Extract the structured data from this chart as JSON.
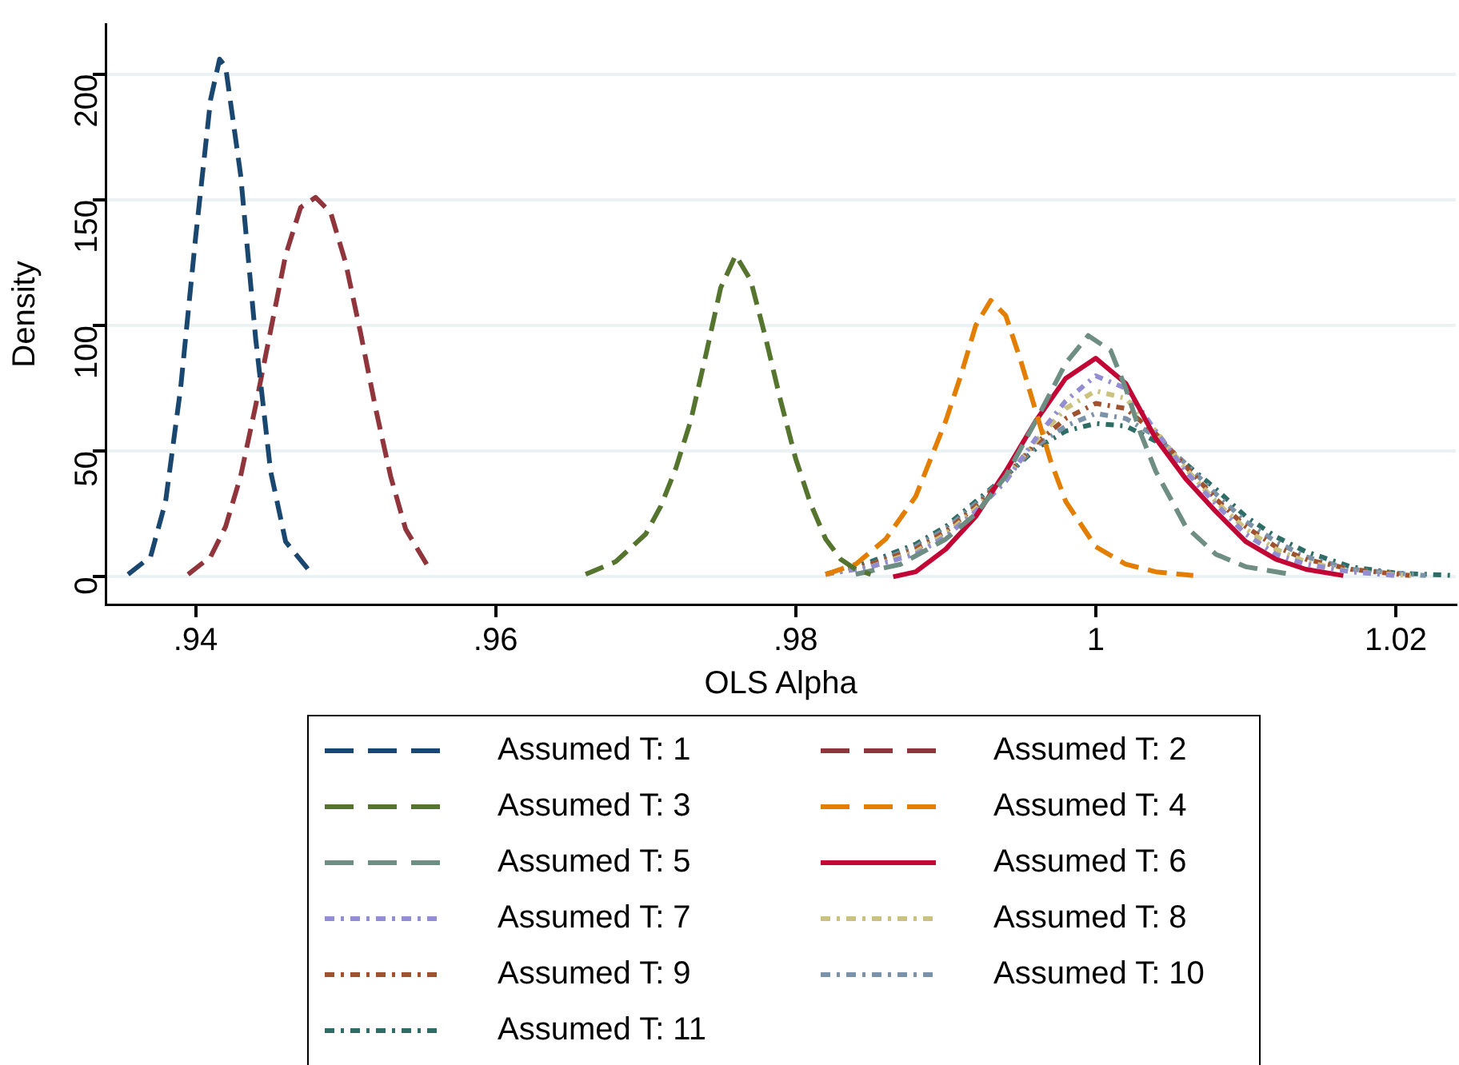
{
  "chart_data": {
    "type": "line",
    "xlabel": "OLS Alpha",
    "ylabel": "Density",
    "xlim": [
      0.934,
      1.024
    ],
    "ylim": [
      -11,
      220
    ],
    "xticks": [
      {
        "value": 0.94,
        "label": ".94"
      },
      {
        "value": 0.96,
        "label": ".96"
      },
      {
        "value": 0.98,
        "label": ".98"
      },
      1,
      1.02
    ],
    "yticks": [
      0,
      50,
      100,
      150,
      200
    ],
    "grid": "y",
    "legend": "bottom",
    "marker": "none",
    "series": [
      {
        "name": "Assumed T: 1",
        "color": "#1a476f",
        "line_style": "dashed",
        "x": [
          0.9355,
          0.937,
          0.938,
          0.939,
          0.94,
          0.941,
          0.9416,
          0.942,
          0.943,
          0.944,
          0.945,
          0.946,
          0.9475
        ],
        "values": [
          1,
          8,
          30,
          75,
          135,
          190,
          206,
          203,
          160,
          95,
          42,
          14,
          3
        ]
      },
      {
        "name": "Assumed T: 2",
        "color": "#90353b",
        "line_style": "dashed",
        "x": [
          0.9395,
          0.941,
          0.942,
          0.943,
          0.944,
          0.945,
          0.946,
          0.947,
          0.948,
          0.949,
          0.95,
          0.951,
          0.952,
          0.953,
          0.954,
          0.9555
        ],
        "values": [
          1,
          8,
          20,
          40,
          68,
          98,
          128,
          147,
          151,
          145,
          125,
          97,
          67,
          40,
          19,
          4
        ]
      },
      {
        "name": "Assumed T: 3",
        "color": "#55752f",
        "line_style": "dashed",
        "x": [
          0.966,
          0.968,
          0.97,
          0.971,
          0.972,
          0.973,
          0.974,
          0.975,
          0.976,
          0.977,
          0.978,
          0.979,
          0.98,
          0.981,
          0.982,
          0.983,
          0.984,
          0.985
        ],
        "values": [
          1,
          6,
          17,
          28,
          43,
          62,
          88,
          115,
          128,
          118,
          95,
          70,
          47,
          29,
          15,
          7,
          3,
          1
        ]
      },
      {
        "name": "Assumed T: 4",
        "color": "#e37e00",
        "line_style": "dashed",
        "x": [
          0.982,
          0.984,
          0.986,
          0.988,
          0.99,
          0.991,
          0.992,
          0.993,
          0.994,
          0.995,
          0.996,
          0.997,
          0.998,
          1.0,
          1.002,
          1.004,
          1.0065
        ],
        "values": [
          1,
          5,
          15,
          32,
          62,
          80,
          100,
          110,
          104,
          86,
          66,
          46,
          30,
          12,
          5,
          2,
          0.5
        ]
      },
      {
        "name": "Assumed T: 5",
        "color": "#6e8e84",
        "line_style": "dashed",
        "x": [
          0.984,
          0.987,
          0.99,
          0.992,
          0.994,
          0.996,
          0.998,
          0.9995,
          1.001,
          1.002,
          1.003,
          1.004,
          1.006,
          1.008,
          1.01,
          1.013
        ],
        "values": [
          1,
          5,
          15,
          25,
          40,
          62,
          85,
          96,
          90,
          75,
          57,
          42,
          20,
          9,
          4,
          1
        ]
      },
      {
        "name": "Assumed T: 6",
        "color": "#c10534",
        "line_style": "solid",
        "x": [
          0.9865,
          0.988,
          0.99,
          0.992,
          0.994,
          0.996,
          0.998,
          1.0,
          1.002,
          1.004,
          1.006,
          1.008,
          1.01,
          1.012,
          1.014,
          1.0165
        ],
        "values": [
          0,
          2,
          11,
          24,
          42,
          62,
          79,
          87,
          77,
          55,
          39,
          26,
          14,
          7,
          3,
          0.5
        ]
      },
      {
        "name": "Assumed T: 7",
        "color": "#938dd2",
        "line_style": "dotted",
        "x": [
          0.982,
          0.985,
          0.988,
          0.99,
          0.992,
          0.994,
          0.996,
          0.998,
          1.0,
          1.002,
          1.004,
          1.006,
          1.008,
          1.01,
          1.012,
          1.014,
          1.017,
          1.02
        ],
        "values": [
          1,
          4,
          9,
          16,
          26,
          38,
          55,
          70,
          80,
          75,
          58,
          42,
          29,
          17,
          9,
          5,
          2,
          0.5
        ]
      },
      {
        "name": "Assumed T: 8",
        "color": "#cac27e",
        "line_style": "dotted",
        "x": [
          0.982,
          0.985,
          0.988,
          0.99,
          0.992,
          0.994,
          0.996,
          0.998,
          1.0,
          1.002,
          1.004,
          1.006,
          1.008,
          1.01,
          1.012,
          1.014,
          1.017,
          1.021
        ],
        "values": [
          1,
          4,
          10,
          17,
          27,
          39,
          54,
          67,
          74,
          71,
          58,
          43,
          30,
          19,
          11,
          6,
          2,
          0.5
        ]
      },
      {
        "name": "Assumed T: 9",
        "color": "#a0522d",
        "line_style": "dotted",
        "x": [
          0.982,
          0.985,
          0.988,
          0.99,
          0.992,
          0.994,
          0.996,
          0.998,
          1.0,
          1.002,
          1.004,
          1.006,
          1.008,
          1.01,
          1.012,
          1.014,
          1.017,
          1.021
        ],
        "values": [
          1,
          5,
          11,
          18,
          28,
          40,
          53,
          63,
          69,
          67,
          57,
          44,
          31,
          20,
          12,
          7,
          3,
          0.5
        ]
      },
      {
        "name": "Assumed T: 10",
        "color": "#7b92a8",
        "line_style": "dotted",
        "x": [
          0.982,
          0.985,
          0.988,
          0.99,
          0.992,
          0.994,
          0.996,
          0.998,
          1.0,
          1.002,
          1.004,
          1.006,
          1.008,
          1.01,
          1.012,
          1.014,
          1.017,
          1.022
        ],
        "values": [
          1,
          5,
          12,
          19,
          29,
          40,
          52,
          60,
          65,
          63,
          56,
          45,
          33,
          22,
          14,
          8,
          3,
          0.5
        ]
      },
      {
        "name": "Assumed T: 11",
        "color": "#2d6d66",
        "line_style": "dotted",
        "x": [
          0.982,
          0.985,
          0.988,
          0.99,
          0.992,
          0.994,
          0.996,
          0.998,
          1.0,
          1.002,
          1.004,
          1.006,
          1.008,
          1.01,
          1.012,
          1.014,
          1.017,
          1.02,
          1.024
        ],
        "values": [
          1,
          6,
          13,
          20,
          30,
          40,
          51,
          58,
          61,
          60,
          54,
          45,
          35,
          24,
          16,
          10,
          4,
          1.5,
          0.5
        ]
      }
    ]
  }
}
